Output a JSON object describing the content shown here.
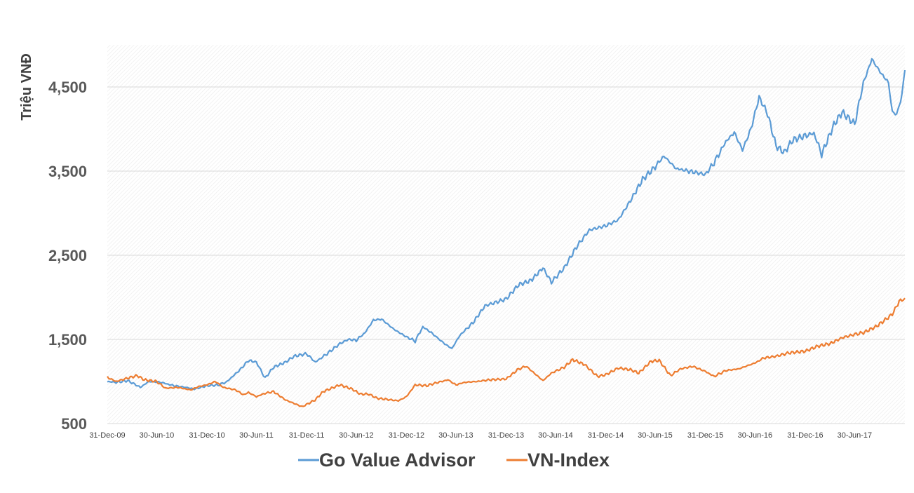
{
  "chart_data": {
    "type": "line",
    "ylabel": "Triệu VNĐ",
    "ylim": [
      500,
      5000
    ],
    "yticks": [
      "500",
      "1,500",
      "2,500",
      "3,500",
      "4,500"
    ],
    "ytick_values": [
      500,
      1500,
      2500,
      3500,
      4500
    ],
    "xlim": [
      "2009-12-31",
      "2017-12-31"
    ],
    "xticks": [
      "31-Dec-09",
      "30-Jun-10",
      "31-Dec-10",
      "30-Jun-11",
      "31-Dec-11",
      "30-Jun-12",
      "31-Dec-12",
      "30-Jun-13",
      "31-Dec-13",
      "30-Jun-14",
      "31-Dec-14",
      "30-Jun-15",
      "31-Dec-15",
      "30-Jun-16",
      "31-Dec-16",
      "30-Jun-17"
    ],
    "xtick_dates": [
      "2009-12-31",
      "2010-06-30",
      "2010-12-31",
      "2011-06-30",
      "2011-12-31",
      "2012-06-30",
      "2012-12-31",
      "2013-06-30",
      "2013-12-31",
      "2014-06-30",
      "2014-12-31",
      "2015-06-30",
      "2015-12-31",
      "2016-06-30",
      "2016-12-31",
      "2017-06-30"
    ],
    "grid": true,
    "legend_position": "bottom",
    "series": [
      {
        "name": "Go Value Advisor",
        "color": "#5B9BD5",
        "points": [
          [
            "2009-12-31",
            1000
          ],
          [
            "2010-02-01",
            990
          ],
          [
            "2010-03-15",
            1010
          ],
          [
            "2010-04-15",
            960
          ],
          [
            "2010-05-01",
            930
          ],
          [
            "2010-06-01",
            1000
          ],
          [
            "2010-07-15",
            990
          ],
          [
            "2010-09-01",
            950
          ],
          [
            "2010-10-15",
            930
          ],
          [
            "2010-11-15",
            910
          ],
          [
            "2010-12-31",
            950
          ],
          [
            "2011-02-15",
            960
          ],
          [
            "2011-03-15",
            1000
          ],
          [
            "2011-05-01",
            1140
          ],
          [
            "2011-06-01",
            1250
          ],
          [
            "2011-06-30",
            1230
          ],
          [
            "2011-08-01",
            1040
          ],
          [
            "2011-09-01",
            1170
          ],
          [
            "2011-10-15",
            1230
          ],
          [
            "2011-11-15",
            1300
          ],
          [
            "2011-12-31",
            1330
          ],
          [
            "2012-02-01",
            1230
          ],
          [
            "2012-03-15",
            1330
          ],
          [
            "2012-05-01",
            1450
          ],
          [
            "2012-06-01",
            1500
          ],
          [
            "2012-06-30",
            1490
          ],
          [
            "2012-08-01",
            1580
          ],
          [
            "2012-09-01",
            1730
          ],
          [
            "2012-10-01",
            1740
          ],
          [
            "2012-11-15",
            1620
          ],
          [
            "2012-12-31",
            1530
          ],
          [
            "2013-02-01",
            1480
          ],
          [
            "2013-03-01",
            1650
          ],
          [
            "2013-04-01",
            1580
          ],
          [
            "2013-05-15",
            1460
          ],
          [
            "2013-06-15",
            1390
          ],
          [
            "2013-07-15",
            1550
          ],
          [
            "2013-09-01",
            1700
          ],
          [
            "2013-10-15",
            1900
          ],
          [
            "2013-12-31",
            1980
          ],
          [
            "2014-02-15",
            2150
          ],
          [
            "2014-04-01",
            2200
          ],
          [
            "2014-05-15",
            2350
          ],
          [
            "2014-06-15",
            2180
          ],
          [
            "2014-08-01",
            2350
          ],
          [
            "2014-09-15",
            2600
          ],
          [
            "2014-11-01",
            2800
          ],
          [
            "2014-12-31",
            2850
          ],
          [
            "2015-02-15",
            2920
          ],
          [
            "2015-04-01",
            3150
          ],
          [
            "2015-05-15",
            3400
          ],
          [
            "2015-06-30",
            3550
          ],
          [
            "2015-08-01",
            3680
          ],
          [
            "2015-09-15",
            3530
          ],
          [
            "2015-11-01",
            3500
          ],
          [
            "2015-12-31",
            3460
          ],
          [
            "2016-02-01",
            3600
          ],
          [
            "2016-03-15",
            3850
          ],
          [
            "2016-04-15",
            3960
          ],
          [
            "2016-05-15",
            3750
          ],
          [
            "2016-06-15",
            4000
          ],
          [
            "2016-07-15",
            4380
          ],
          [
            "2016-08-15",
            4180
          ],
          [
            "2016-09-15",
            3800
          ],
          [
            "2016-10-15",
            3720
          ],
          [
            "2016-11-15",
            3870
          ],
          [
            "2016-12-31",
            3920
          ],
          [
            "2017-02-01",
            3950
          ],
          [
            "2017-03-01",
            3700
          ],
          [
            "2017-04-15",
            4050
          ],
          [
            "2017-05-15",
            4200
          ],
          [
            "2017-06-30",
            4060
          ],
          [
            "2017-08-01",
            4550
          ],
          [
            "2017-09-01",
            4830
          ],
          [
            "2017-10-01",
            4680
          ],
          [
            "2017-11-01",
            4550
          ],
          [
            "2017-11-15",
            4200
          ],
          [
            "2017-12-01",
            4170
          ],
          [
            "2017-12-20",
            4400
          ],
          [
            "2017-12-31",
            4700
          ]
        ]
      },
      {
        "name": "VN-Index",
        "color": "#ED7D31",
        "points": [
          [
            "2009-12-31",
            1050
          ],
          [
            "2010-02-01",
            1000
          ],
          [
            "2010-03-15",
            1040
          ],
          [
            "2010-04-20",
            1070
          ],
          [
            "2010-05-15",
            1020
          ],
          [
            "2010-06-30",
            1000
          ],
          [
            "2010-08-01",
            920
          ],
          [
            "2010-09-15",
            930
          ],
          [
            "2010-11-01",
            900
          ],
          [
            "2010-12-01",
            940
          ],
          [
            "2010-12-31",
            960
          ],
          [
            "2011-01-31",
            1000
          ],
          [
            "2011-03-01",
            930
          ],
          [
            "2011-04-15",
            900
          ],
          [
            "2011-05-15",
            840
          ],
          [
            "2011-06-01",
            870
          ],
          [
            "2011-06-30",
            820
          ],
          [
            "2011-08-01",
            860
          ],
          [
            "2011-09-01",
            880
          ],
          [
            "2011-10-15",
            780
          ],
          [
            "2011-12-15",
            700
          ],
          [
            "2012-01-31",
            780
          ],
          [
            "2012-03-01",
            880
          ],
          [
            "2012-05-01",
            960
          ],
          [
            "2012-06-15",
            910
          ],
          [
            "2012-07-15",
            850
          ],
          [
            "2012-08-15",
            850
          ],
          [
            "2012-09-15",
            800
          ],
          [
            "2012-10-15",
            790
          ],
          [
            "2012-12-01",
            770
          ],
          [
            "2012-12-31",
            820
          ],
          [
            "2013-02-01",
            960
          ],
          [
            "2013-03-15",
            950
          ],
          [
            "2013-04-15",
            980
          ],
          [
            "2013-06-01",
            1020
          ],
          [
            "2013-06-30",
            960
          ],
          [
            "2013-08-01",
            990
          ],
          [
            "2013-09-15",
            1000
          ],
          [
            "2013-11-01",
            1020
          ],
          [
            "2013-12-31",
            1030
          ],
          [
            "2014-02-15",
            1150
          ],
          [
            "2014-03-15",
            1180
          ],
          [
            "2014-05-15",
            1010
          ],
          [
            "2014-06-15",
            1100
          ],
          [
            "2014-08-01",
            1170
          ],
          [
            "2014-09-01",
            1260
          ],
          [
            "2014-10-15",
            1200
          ],
          [
            "2014-12-01",
            1060
          ],
          [
            "2014-12-31",
            1080
          ],
          [
            "2015-02-15",
            1160
          ],
          [
            "2015-04-01",
            1140
          ],
          [
            "2015-05-01",
            1100
          ],
          [
            "2015-06-15",
            1240
          ],
          [
            "2015-07-15",
            1250
          ],
          [
            "2015-08-25",
            1070
          ],
          [
            "2015-10-01",
            1150
          ],
          [
            "2015-11-15",
            1180
          ],
          [
            "2015-12-31",
            1120
          ],
          [
            "2016-02-01",
            1060
          ],
          [
            "2016-03-15",
            1130
          ],
          [
            "2016-05-01",
            1150
          ],
          [
            "2016-06-30",
            1220
          ],
          [
            "2016-08-01",
            1280
          ],
          [
            "2016-09-15",
            1300
          ],
          [
            "2016-11-01",
            1340
          ],
          [
            "2016-12-31",
            1360
          ],
          [
            "2017-02-15",
            1420
          ],
          [
            "2017-04-01",
            1450
          ],
          [
            "2017-05-15",
            1520
          ],
          [
            "2017-06-30",
            1560
          ],
          [
            "2017-08-01",
            1580
          ],
          [
            "2017-09-15",
            1650
          ],
          [
            "2017-10-15",
            1720
          ],
          [
            "2017-11-15",
            1800
          ],
          [
            "2017-12-10",
            1950
          ],
          [
            "2017-12-31",
            1990
          ]
        ]
      }
    ]
  }
}
